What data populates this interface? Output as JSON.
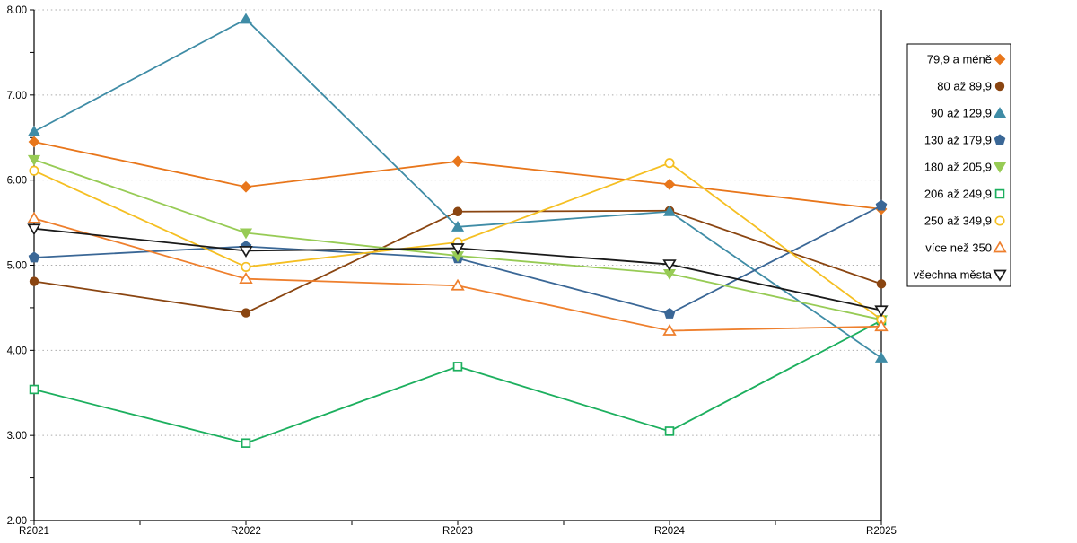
{
  "chart_data": {
    "type": "line",
    "title": "",
    "xlabel": "",
    "ylabel": "",
    "categories": [
      "R2021",
      "R2022",
      "R2023",
      "R2024",
      "R2025"
    ],
    "ylim": [
      2.0,
      8.0
    ],
    "ytick_step": 1.0,
    "y_tick_labels": [
      "2.00",
      "3.00",
      "4.00",
      "5.00",
      "6.00",
      "7.00",
      "8.00"
    ],
    "grid": "horizontal-dotted",
    "grid_color": "#ababab",
    "axis_color": "#000000",
    "legend_position": "right-outside",
    "series": [
      {
        "name": "79,9 a méně",
        "color": "#e8761b",
        "marker": "diamond",
        "filled": true,
        "values": [
          6.45,
          5.92,
          6.22,
          5.95,
          5.66
        ]
      },
      {
        "name": "80 až 89,9",
        "color": "#8a4511",
        "marker": "circle",
        "filled": true,
        "values": [
          4.81,
          4.44,
          5.63,
          5.64,
          4.78
        ]
      },
      {
        "name": "90 až 129,9",
        "color": "#3f8ca6",
        "marker": "triangle-up",
        "filled": true,
        "values": [
          6.57,
          7.89,
          5.45,
          5.63,
          3.91
        ]
      },
      {
        "name": "130 až 179,9",
        "color": "#3a6796",
        "marker": "pentagon",
        "filled": true,
        "values": [
          5.09,
          5.22,
          5.08,
          4.43,
          5.7
        ]
      },
      {
        "name": "180 až 205,9",
        "color": "#97cb55",
        "marker": "triangle-down",
        "filled": true,
        "values": [
          6.24,
          5.38,
          5.11,
          4.9,
          4.36
        ]
      },
      {
        "name": "206 až 249,9",
        "color": "#1caf5e",
        "marker": "square",
        "filled": false,
        "values": [
          3.54,
          2.91,
          3.81,
          3.05,
          4.35
        ]
      },
      {
        "name": "250 až 349,9",
        "color": "#f5bf22",
        "marker": "circle",
        "filled": false,
        "values": [
          6.11,
          4.98,
          5.27,
          6.2,
          4.36
        ]
      },
      {
        "name": "více než 350",
        "color": "#ee7f2d",
        "marker": "triangle-up",
        "filled": false,
        "values": [
          5.55,
          4.84,
          4.76,
          4.23,
          4.28
        ]
      },
      {
        "name": "všechna města",
        "color": "#1a1a1a",
        "marker": "triangle-down",
        "filled": false,
        "values": [
          5.43,
          5.17,
          5.2,
          5.01,
          4.47
        ]
      }
    ]
  }
}
